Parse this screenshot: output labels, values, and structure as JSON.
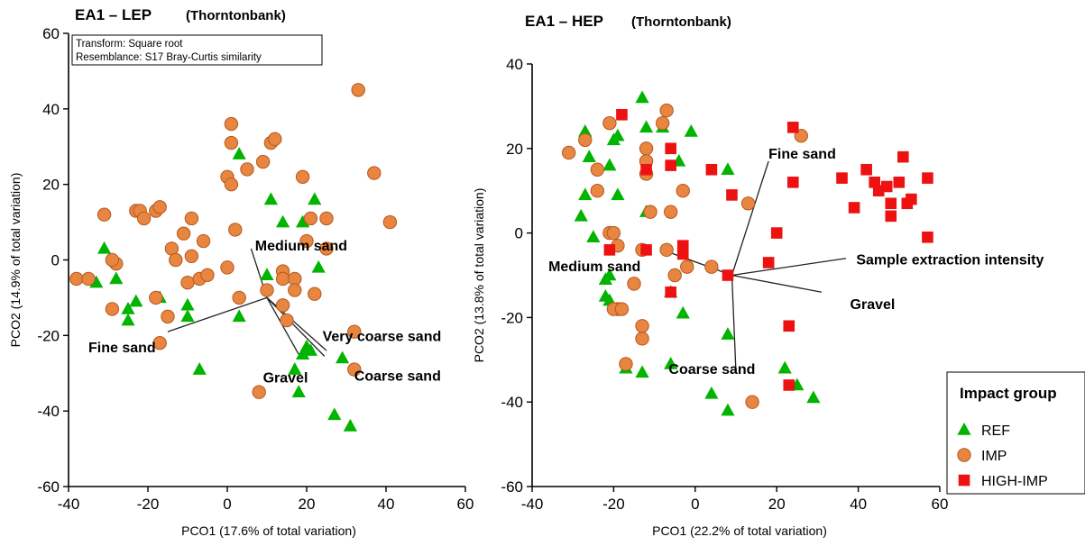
{
  "chart_data": [
    {
      "type": "scatter",
      "title": "EA1 – LEP",
      "subtitle": "(Thorntonbank)",
      "info_box": [
        "Transform: Square root",
        "Resemblance: S17 Bray-Curtis similarity"
      ],
      "xlabel": "PCO1 (17.6% of total variation)",
      "ylabel": "PCO2 (14.9% of total variation)",
      "xlim": [
        -40,
        60
      ],
      "ylim": [
        -60,
        60
      ],
      "xticks": [
        -40,
        -20,
        0,
        20,
        40,
        60
      ],
      "yticks": [
        -60,
        -40,
        -20,
        0,
        20,
        40,
        60
      ],
      "grid": false,
      "vector_origin": [
        10,
        -10
      ],
      "vectors": [
        {
          "label": "Medium sand",
          "end": [
            6,
            3
          ],
          "label_pos": [
            7,
            2.5
          ]
        },
        {
          "label": "Fine sand",
          "end": [
            -15,
            -19
          ],
          "label_pos": [
            -35,
            -24.5
          ]
        },
        {
          "label": "Very coarse sand",
          "end": [
            25,
            -24
          ],
          "label_pos": [
            24,
            -21.5
          ]
        },
        {
          "label": "Coarse sand",
          "end": [
            24.5,
            -25.5
          ],
          "label_pos": [
            32,
            -32
          ]
        },
        {
          "label": "Gravel",
          "end": [
            18,
            -25
          ],
          "label_pos": [
            9,
            -32.5
          ]
        }
      ],
      "series": [
        {
          "name": "REF",
          "marker": "triangle",
          "color": "#00b400",
          "points": [
            [
              -31,
              3
            ],
            [
              -33,
              -6
            ],
            [
              -28,
              -5
            ],
            [
              -25,
              -13
            ],
            [
              -25,
              -16
            ],
            [
              -23,
              -11
            ],
            [
              -17,
              -10
            ],
            [
              -10,
              -12
            ],
            [
              -10,
              -15
            ],
            [
              -7,
              -29
            ],
            [
              3,
              -15
            ],
            [
              3,
              28
            ],
            [
              10,
              -4
            ],
            [
              11,
              16
            ],
            [
              14,
              10
            ],
            [
              19,
              10
            ],
            [
              22,
              16
            ],
            [
              23,
              -2
            ],
            [
              17,
              -29
            ],
            [
              18,
              -35
            ],
            [
              19,
              -25
            ],
            [
              21,
              -24
            ],
            [
              20,
              -23
            ],
            [
              27,
              -41
            ],
            [
              29,
              -26
            ],
            [
              31,
              -44
            ]
          ]
        },
        {
          "name": "IMP",
          "marker": "circle",
          "color": "#e88540",
          "points": [
            [
              -38,
              -5
            ],
            [
              -35,
              -5
            ],
            [
              -31,
              12
            ],
            [
              -29,
              -13
            ],
            [
              -28,
              -1
            ],
            [
              -29,
              0
            ],
            [
              -23,
              13
            ],
            [
              -22,
              13
            ],
            [
              -21,
              11
            ],
            [
              -18,
              13
            ],
            [
              -18,
              -10
            ],
            [
              -17,
              14
            ],
            [
              -17,
              -22
            ],
            [
              -15,
              -15
            ],
            [
              -14,
              3
            ],
            [
              -13,
              0
            ],
            [
              -10,
              -6
            ],
            [
              -11,
              7
            ],
            [
              -9,
              1
            ],
            [
              -9,
              11
            ],
            [
              -7,
              -5
            ],
            [
              -6,
              5
            ],
            [
              -5,
              -4
            ],
            [
              0,
              22
            ],
            [
              1,
              20
            ],
            [
              1,
              36
            ],
            [
              1,
              31
            ],
            [
              0,
              -2
            ],
            [
              2,
              8
            ],
            [
              5,
              24
            ],
            [
              9,
              26
            ],
            [
              10,
              -8
            ],
            [
              11,
              31
            ],
            [
              12,
              32
            ],
            [
              14,
              -3
            ],
            [
              14,
              -5
            ],
            [
              14,
              -12
            ],
            [
              15,
              -16
            ],
            [
              17,
              -5
            ],
            [
              17,
              -8
            ],
            [
              19,
              22
            ],
            [
              20,
              5
            ],
            [
              21,
              11
            ],
            [
              22,
              -9
            ],
            [
              25,
              11
            ],
            [
              25,
              3
            ],
            [
              32,
              -19
            ],
            [
              32,
              -29
            ],
            [
              33,
              45
            ],
            [
              37,
              23
            ],
            [
              41,
              10
            ],
            [
              8,
              -35
            ],
            [
              3,
              -10
            ]
          ]
        }
      ]
    },
    {
      "type": "scatter",
      "title": "EA1 – HEP",
      "subtitle": "(Thorntonbank)",
      "xlabel": "PCO1 (22.2% of total variation)",
      "ylabel": "PCO2 (13.8% of total variation)",
      "xlim": [
        -40,
        60
      ],
      "ylim": [
        -60,
        40
      ],
      "xticks": [
        -40,
        -20,
        0,
        20,
        40,
        60
      ],
      "yticks": [
        -60,
        -40,
        -20,
        0,
        20,
        40
      ],
      "grid": false,
      "vector_origin": [
        9,
        -10
      ],
      "vectors": [
        {
          "label": "Fine sand",
          "end": [
            18,
            17
          ],
          "label_pos": [
            18,
            17.6
          ]
        },
        {
          "label": "Medium sand",
          "end": [
            -8,
            -4
          ],
          "label_pos": [
            -36,
            -9
          ]
        },
        {
          "label": "Sample extraction intensity",
          "end": [
            37,
            -6
          ],
          "label_pos": [
            39.5,
            -7.4
          ]
        },
        {
          "label": "Gravel",
          "end": [
            31,
            -14
          ],
          "label_pos": [
            38,
            -18
          ]
        },
        {
          "label": "Coarse sand",
          "end": [
            10,
            -33
          ],
          "label_pos": [
            -6.5,
            -33.4
          ]
        }
      ],
      "legend": {
        "title": "Impact group",
        "entries": [
          "REF",
          "IMP",
          "HIGH-IMP"
        ],
        "placement": "bottom-right"
      },
      "series": [
        {
          "name": "REF",
          "marker": "triangle",
          "color": "#00b400",
          "points": [
            [
              -27,
              24
            ],
            [
              -26,
              18
            ],
            [
              -27,
              9
            ],
            [
              -28,
              4
            ],
            [
              -25,
              -1
            ],
            [
              -22,
              -11
            ],
            [
              -20,
              22
            ],
            [
              -19,
              23
            ],
            [
              -21,
              16
            ],
            [
              -21,
              -10
            ],
            [
              -22,
              -15
            ],
            [
              -21,
              -16
            ],
            [
              -19,
              9
            ],
            [
              -17,
              -32
            ],
            [
              -13,
              32
            ],
            [
              -12,
              25
            ],
            [
              -12,
              5
            ],
            [
              -13,
              -33
            ],
            [
              -8,
              25
            ],
            [
              -6,
              -14
            ],
            [
              -6,
              -31
            ],
            [
              -4,
              17
            ],
            [
              -3,
              -19
            ],
            [
              -1,
              24
            ],
            [
              8,
              15
            ],
            [
              8,
              -24
            ],
            [
              8,
              -42
            ],
            [
              4,
              -38
            ],
            [
              22,
              -32
            ],
            [
              25,
              -36
            ],
            [
              29,
              -39
            ]
          ]
        },
        {
          "name": "IMP",
          "marker": "circle",
          "color": "#e88540",
          "points": [
            [
              -31,
              19
            ],
            [
              -27,
              22
            ],
            [
              -24,
              15
            ],
            [
              -24,
              10
            ],
            [
              -21,
              26
            ],
            [
              -21,
              0
            ],
            [
              -20,
              0
            ],
            [
              -19,
              -18
            ],
            [
              -20,
              -18
            ],
            [
              -19,
              -3
            ],
            [
              -18,
              -18
            ],
            [
              -17,
              -31
            ],
            [
              -15,
              -12
            ],
            [
              -13,
              -25
            ],
            [
              -13,
              -22
            ],
            [
              -13,
              -4
            ],
            [
              -12,
              20
            ],
            [
              -12,
              17
            ],
            [
              -12,
              14
            ],
            [
              -11,
              5
            ],
            [
              -8,
              26
            ],
            [
              -7,
              29
            ],
            [
              -6,
              5
            ],
            [
              -7,
              -4
            ],
            [
              -5,
              -10
            ],
            [
              -3,
              10
            ],
            [
              -2,
              -8
            ],
            [
              4,
              -8
            ],
            [
              13,
              7
            ],
            [
              14,
              -40
            ],
            [
              26,
              23
            ]
          ]
        },
        {
          "name": "HIGH-IMP",
          "marker": "square",
          "color": "#ee1111",
          "points": [
            [
              -18,
              28
            ],
            [
              -21,
              -4
            ],
            [
              -12,
              15
            ],
            [
              -12,
              -4
            ],
            [
              -6,
              20
            ],
            [
              -6,
              16
            ],
            [
              -6,
              -14
            ],
            [
              -3,
              -3
            ],
            [
              -3,
              -5
            ],
            [
              4,
              15
            ],
            [
              8,
              -10
            ],
            [
              9,
              9
            ],
            [
              18,
              -7
            ],
            [
              20,
              0
            ],
            [
              23,
              -22
            ],
            [
              23,
              -36
            ],
            [
              24,
              12
            ],
            [
              24,
              25
            ],
            [
              36,
              13
            ],
            [
              39,
              6
            ],
            [
              42,
              15
            ],
            [
              44,
              12
            ],
            [
              45,
              10
            ],
            [
              47,
              11
            ],
            [
              48,
              7
            ],
            [
              48,
              4
            ],
            [
              50,
              12
            ],
            [
              51,
              18
            ],
            [
              52,
              7
            ],
            [
              53,
              8
            ],
            [
              57,
              13
            ],
            [
              57,
              -1
            ]
          ]
        }
      ]
    }
  ]
}
